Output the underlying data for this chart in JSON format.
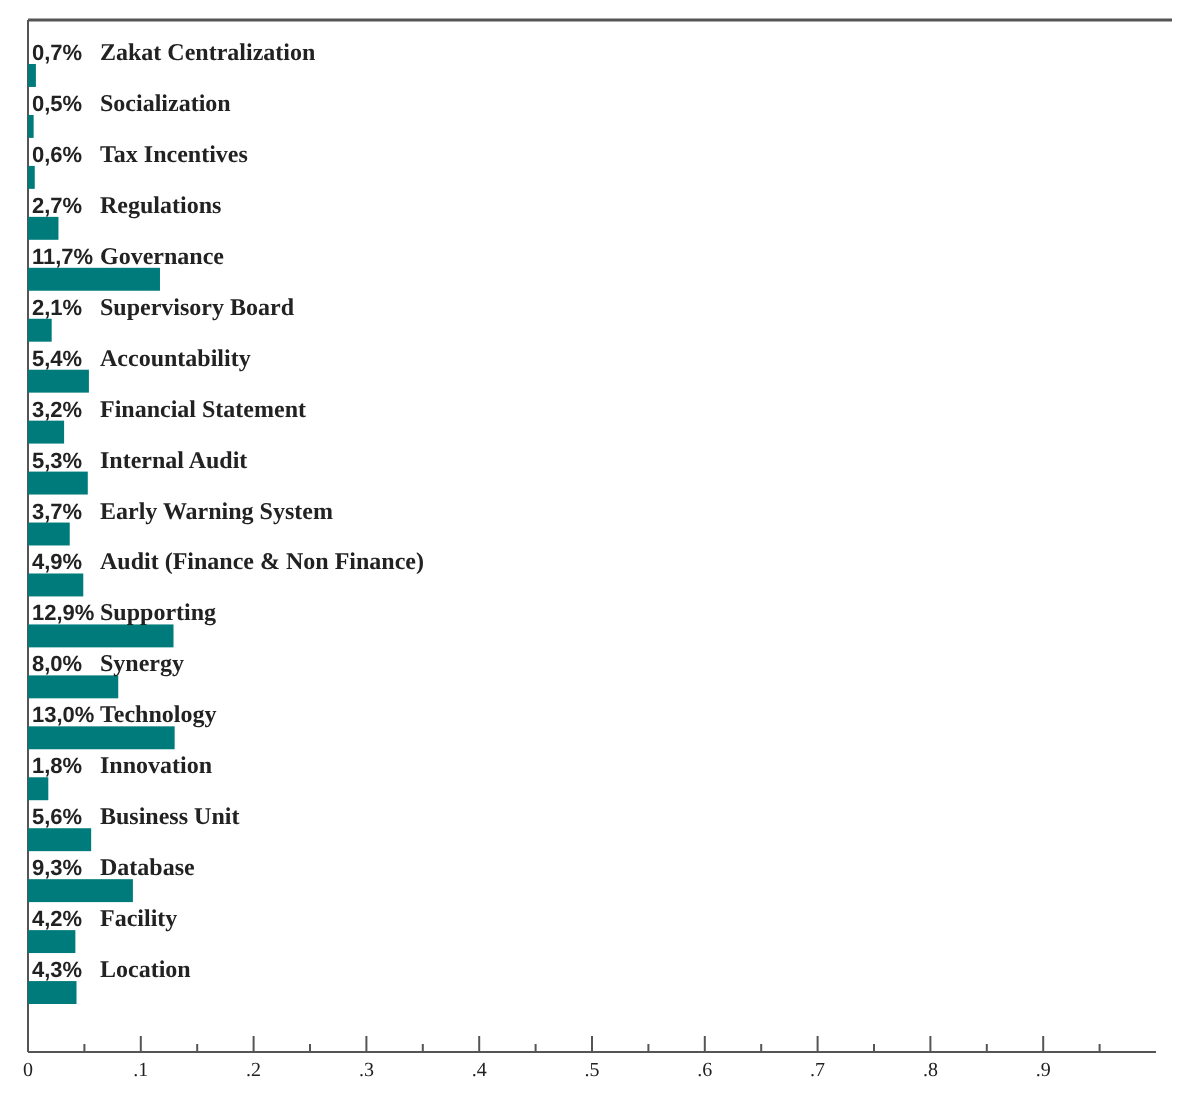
{
  "chart_data": {
    "type": "bar",
    "orientation": "horizontal",
    "categories": [
      "Zakat Centralization",
      "Socialization",
      "Tax Incentives",
      "Regulations",
      "Governance",
      "Supervisory Board",
      "Accountability",
      "Financial Statement",
      "Internal Audit",
      "Early Warning System",
      "Audit (Finance & Non Finance)",
      "Supporting",
      "Synergy",
      "Technology",
      "Innovation",
      "Business Unit",
      "Database",
      "Facility",
      "Location"
    ],
    "values": [
      0.007,
      0.005,
      0.006,
      0.027,
      0.117,
      0.021,
      0.054,
      0.032,
      0.053,
      0.037,
      0.049,
      0.129,
      0.08,
      0.13,
      0.018,
      0.056,
      0.093,
      0.042,
      0.043
    ],
    "value_labels": [
      "0,7%",
      "0,5%",
      "0,6%",
      "2,7%",
      "11,7%",
      "2,1%",
      "5,4%",
      "3,2%",
      "5,3%",
      "3,7%",
      "4,9%",
      "12,9%",
      "8,0%",
      "13,0%",
      "1,8%",
      "5,6%",
      "9,3%",
      "4,2%",
      "4,3%"
    ],
    "color": "#007b7b",
    "xlim": [
      0,
      1
    ],
    "xticks": [
      {
        "value": 0,
        "label": "0"
      },
      {
        "value": 0.05,
        "label": null
      },
      {
        "value": 0.1,
        "label": ".1"
      },
      {
        "value": 0.15,
        "label": null
      },
      {
        "value": 0.2,
        "label": ".2"
      },
      {
        "value": 0.25,
        "label": null
      },
      {
        "value": 0.3,
        "label": ".3"
      },
      {
        "value": 0.35,
        "label": null
      },
      {
        "value": 0.4,
        "label": ".4"
      },
      {
        "value": 0.45,
        "label": null
      },
      {
        "value": 0.5,
        "label": ".5"
      },
      {
        "value": 0.55,
        "label": null
      },
      {
        "value": 0.6,
        "label": ".6"
      },
      {
        "value": 0.65,
        "label": null
      },
      {
        "value": 0.7,
        "label": ".7"
      },
      {
        "value": 0.75,
        "label": null
      },
      {
        "value": 0.8,
        "label": ".8"
      },
      {
        "value": 0.85,
        "label": null
      },
      {
        "value": 0.9,
        "label": ".9"
      },
      {
        "value": 0.95,
        "label": null
      }
    ],
    "grid": false
  }
}
